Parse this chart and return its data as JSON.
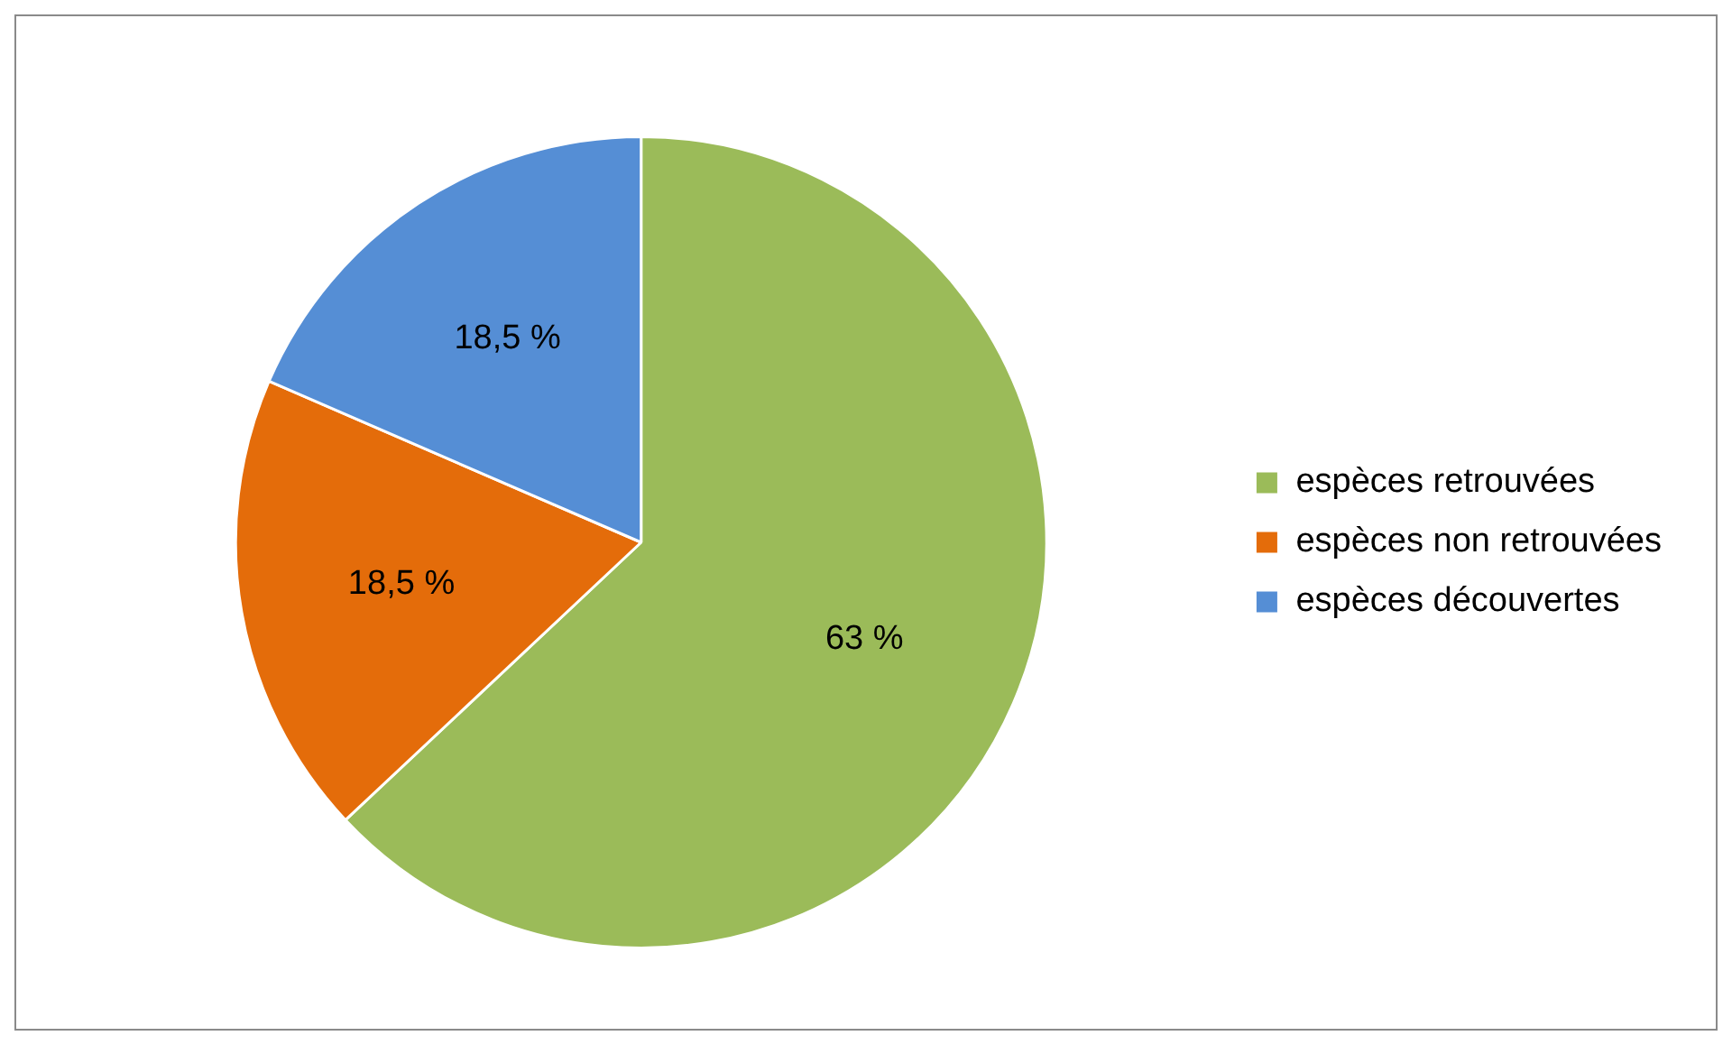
{
  "chart_data": {
    "type": "pie",
    "categories": [
      "espèces retrouvées",
      "espèces non retrouvées",
      "espèces découvertes"
    ],
    "values": [
      63,
      18.5,
      18.5
    ],
    "colors": [
      "#9bbb59",
      "#e46c0a",
      "#558ed5"
    ],
    "value_labels": [
      "63 %",
      "18,5 %",
      "18,5 %"
    ],
    "legend": "right"
  }
}
